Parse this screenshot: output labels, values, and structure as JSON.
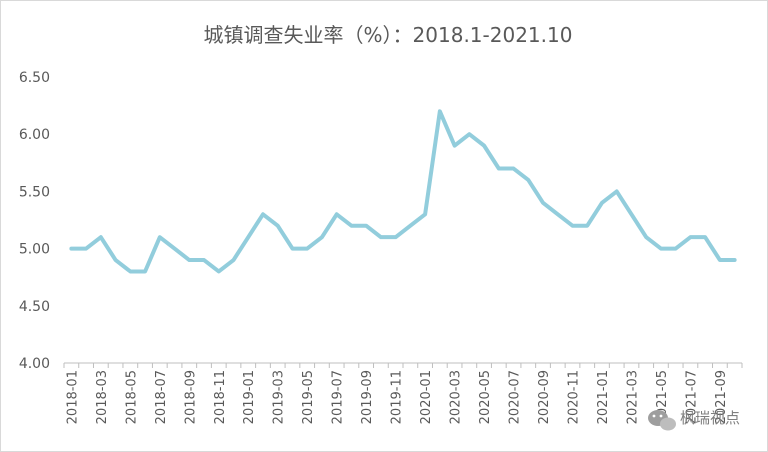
{
  "chart_data": {
    "type": "line",
    "title": "城镇调查失业率（%）：2018.1-2021.10",
    "xlabel": "",
    "ylabel": "",
    "ylim": [
      4.0,
      6.5
    ],
    "yticks": [
      "4.00",
      "4.50",
      "5.00",
      "5.50",
      "6.00",
      "6.50"
    ],
    "grid": false,
    "legend": "none",
    "x": [
      "2018-01",
      "2018-02",
      "2018-03",
      "2018-04",
      "2018-05",
      "2018-06",
      "2018-07",
      "2018-08",
      "2018-09",
      "2018-10",
      "2018-11",
      "2018-12",
      "2019-01",
      "2019-02",
      "2019-03",
      "2019-04",
      "2019-05",
      "2019-06",
      "2019-07",
      "2019-08",
      "2019-09",
      "2019-10",
      "2019-11",
      "2019-12",
      "2020-01",
      "2020-02",
      "2020-03",
      "2020-04",
      "2020-05",
      "2020-06",
      "2020-07",
      "2020-08",
      "2020-09",
      "2020-10",
      "2020-11",
      "2020-12",
      "2021-01",
      "2021-02",
      "2021-03",
      "2021-04",
      "2021-05",
      "2021-06",
      "2021-07",
      "2021-08",
      "2021-09",
      "2021-10"
    ],
    "xtick_labels": [
      "2018-01",
      "2018-03",
      "2018-05",
      "2018-07",
      "2018-09",
      "2018-11",
      "2019-01",
      "2019-03",
      "2019-05",
      "2019-07",
      "2019-09",
      "2019-11",
      "2020-01",
      "2020-03",
      "2020-05",
      "2020-07",
      "2020-09",
      "2020-11",
      "2021-01",
      "2021-03",
      "2021-05",
      "2021-07",
      "2021-09"
    ],
    "series": [
      {
        "values": [
          5.0,
          5.0,
          5.1,
          4.9,
          4.8,
          4.8,
          5.1,
          5.0,
          4.9,
          4.9,
          4.8,
          4.9,
          5.1,
          5.3,
          5.2,
          5.0,
          5.0,
          5.1,
          5.3,
          5.2,
          5.2,
          5.1,
          5.1,
          5.2,
          5.3,
          6.2,
          5.9,
          6.0,
          5.9,
          5.7,
          5.7,
          5.6,
          5.4,
          5.3,
          5.2,
          5.2,
          5.4,
          5.5,
          5.3,
          5.1,
          5.0,
          5.0,
          5.1,
          5.1,
          4.9,
          4.9
        ]
      }
    ],
    "line_color": "#92cddc"
  },
  "watermark": {
    "text": "枫瑞视点",
    "icon": "wechat-icon"
  }
}
